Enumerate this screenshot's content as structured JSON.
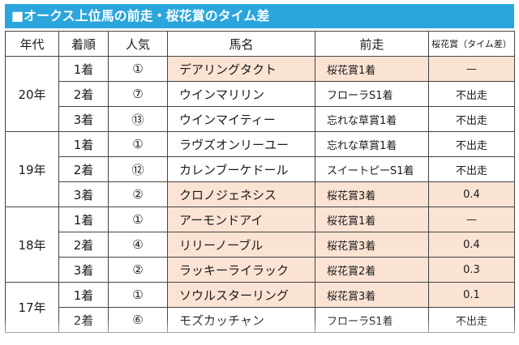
{
  "title": "■オークス上位馬の前走・桜花賞のタイム差",
  "headers": [
    "年代",
    "着順",
    "人気",
    "馬名",
    "前走",
    "桜花賞（タイム差）"
  ],
  "groups": [
    {
      "year": "20年",
      "rows": [
        {
          "rank": "1着",
          "pop": "①",
          "horse": "デアリングタクト",
          "prev": "桜花賞1着",
          "diff": "—",
          "hl": true
        },
        {
          "rank": "2着",
          "pop": "⑦",
          "horse": "ウインマリリン",
          "prev": "フローラS1着",
          "diff": "不出走",
          "hl": false
        },
        {
          "rank": "3着",
          "pop": "⑬",
          "horse": "ウインマイティー",
          "prev": "忘れな草賞1着",
          "diff": "不出走",
          "hl": false
        }
      ]
    },
    {
      "year": "19年",
      "rows": [
        {
          "rank": "1着",
          "pop": "①",
          "horse": "ラヴズオンリーユー",
          "prev": "忘れな草賞1着",
          "diff": "不出走",
          "hl": false
        },
        {
          "rank": "2着",
          "pop": "⑫",
          "horse": "カレンブーケドール",
          "prev": "スイートピーS1着",
          "diff": "不出走",
          "hl": false
        },
        {
          "rank": "3着",
          "pop": "②",
          "horse": "クロノジェネシス",
          "prev": "桜花賞3着",
          "diff": "0.4",
          "hl": true
        }
      ]
    },
    {
      "year": "18年",
      "rows": [
        {
          "rank": "1着",
          "pop": "①",
          "horse": "アーモンドアイ",
          "prev": "桜花賞1着",
          "diff": "—",
          "hl": true
        },
        {
          "rank": "2着",
          "pop": "④",
          "horse": "リリーノーブル",
          "prev": "桜花賞3着",
          "diff": "0.4",
          "hl": true
        },
        {
          "rank": "3着",
          "pop": "②",
          "horse": "ラッキーライラック",
          "prev": "桜花賞2着",
          "diff": "0.3",
          "hl": true
        }
      ]
    },
    {
      "year": "17年",
      "rows": [
        {
          "rank": "1着",
          "pop": "①",
          "horse": "ソウルスターリング",
          "prev": "桜花賞3着",
          "diff": "0.1",
          "hl": true
        },
        {
          "rank": "2着",
          "pop": "⑥",
          "horse": "モズカッチャン",
          "prev": "フローラS1着",
          "diff": "不出走",
          "hl": false
        }
      ]
    }
  ],
  "colors": {
    "title_bg": "#2aa6dc",
    "highlight": "#fbe3d4"
  }
}
